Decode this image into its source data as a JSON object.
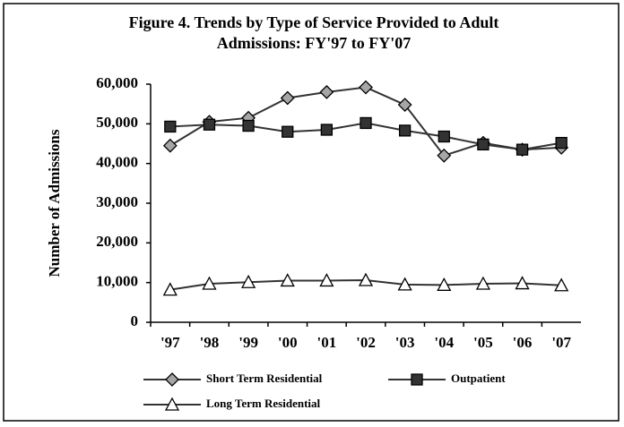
{
  "chart_data": {
    "type": "line",
    "title": "Figure 4. Trends by Type of Service Provided to Adult Admissions:  FY'97 to FY'07",
    "y_label": "Number of Admissions",
    "categories": [
      "'97",
      "'98",
      "'99",
      "'00",
      "'01",
      "'02",
      "'03",
      "'04",
      "'05",
      "'06",
      "'07"
    ],
    "series": [
      {
        "name": "Short Term Residential",
        "color": "#a6a6a6",
        "marker": "diamond",
        "values": [
          44500,
          50500,
          51500,
          56500,
          58000,
          59200,
          54800,
          42000,
          45200,
          43500,
          44000
        ]
      },
      {
        "name": "Outpatient",
        "color": "#333333",
        "marker": "square",
        "values": [
          49300,
          49800,
          49500,
          48000,
          48500,
          50200,
          48300,
          46800,
          44800,
          43500,
          45200
        ]
      },
      {
        "name": "Long Term Residential",
        "color": "#ffffff",
        "marker": "triangle",
        "values": [
          8200,
          9700,
          10100,
          10500,
          10500,
          10600,
          9500,
          9400,
          9700,
          9800,
          9300
        ]
      }
    ],
    "ylim": [
      0,
      60000
    ],
    "yticks": [
      0,
      {
        "value": 10000,
        "label": "10,000"
      },
      {
        "value": 20000,
        "label": "20,000"
      },
      {
        "value": 30000,
        "label": "30,000"
      },
      {
        "value": 40000,
        "label": "40,000"
      },
      {
        "value": 50000,
        "label": "50,000"
      },
      {
        "value": 60000,
        "label": "60,000"
      }
    ],
    "grid": false
  }
}
